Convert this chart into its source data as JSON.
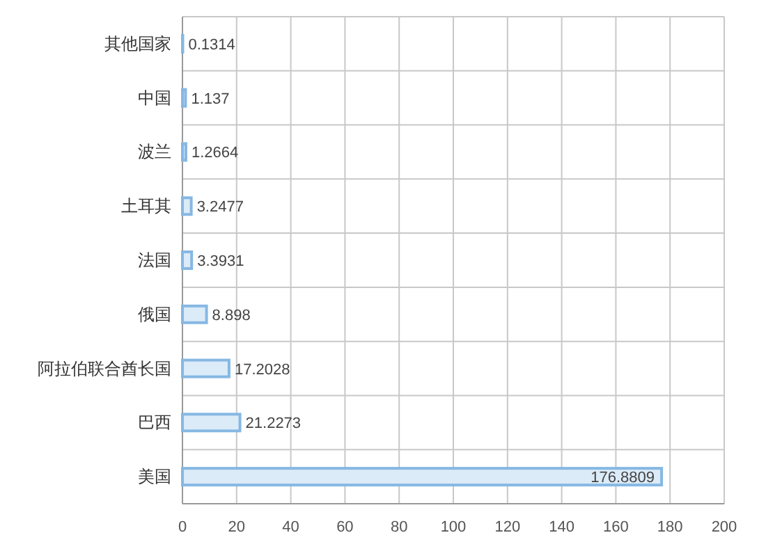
{
  "chart_data": {
    "type": "bar",
    "orientation": "horizontal",
    "categories": [
      "其他国家",
      "中国",
      "波兰",
      "土耳其",
      "法国",
      "俄国",
      "阿拉伯联合酋长国",
      "巴西",
      "美国"
    ],
    "values": [
      0.1314,
      1.137,
      1.2664,
      3.2477,
      3.3931,
      8.898,
      17.2028,
      21.2273,
      176.8809
    ],
    "color": "#dcebf8",
    "xlim": [
      0,
      200
    ],
    "xticks": [
      0,
      20,
      40,
      60,
      80,
      100,
      120,
      140,
      160,
      180,
      200
    ],
    "grid": true,
    "data_labels": true
  }
}
